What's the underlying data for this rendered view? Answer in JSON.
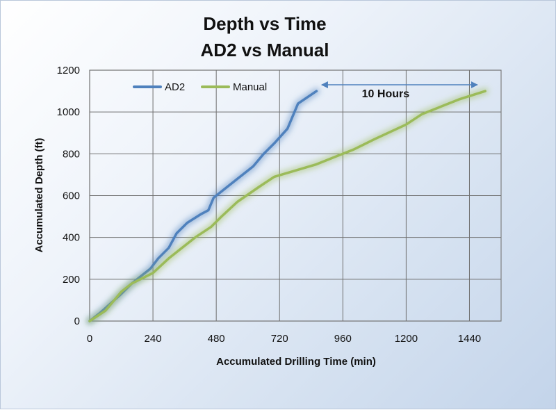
{
  "chart_data": {
    "type": "line",
    "title": "Depth vs Time",
    "subtitle": "AD2 vs Manual",
    "xlabel": "Accumulated Drilling Time (min)",
    "ylabel": "Accumulated Depth (ft)",
    "xlim": [
      0,
      1560
    ],
    "ylim": [
      0,
      1200
    ],
    "xticks": [
      0,
      240,
      480,
      720,
      960,
      1200,
      1440
    ],
    "yticks": [
      0,
      200,
      400,
      600,
      800,
      1000,
      1200
    ],
    "grid": true,
    "legend_position": "top-left",
    "series": [
      {
        "name": "AD2",
        "color": "#4f81bd",
        "x": [
          0,
          40,
          80,
          120,
          160,
          200,
          230,
          260,
          300,
          330,
          370,
          420,
          450,
          470,
          500,
          560,
          620,
          660,
          700,
          750,
          790,
          860
        ],
        "y": [
          0,
          40,
          85,
          130,
          180,
          220,
          250,
          300,
          350,
          420,
          470,
          510,
          530,
          590,
          620,
          680,
          740,
          800,
          850,
          920,
          1040,
          1100
        ]
      },
      {
        "name": "Manual",
        "color": "#9bbb59",
        "x": [
          0,
          60,
          120,
          160,
          240,
          300,
          360,
          400,
          460,
          500,
          560,
          640,
          700,
          780,
          860,
          940,
          1000,
          1080,
          1200,
          1260,
          1320,
          1400,
          1500
        ],
        "y": [
          0,
          50,
          140,
          180,
          230,
          300,
          360,
          400,
          450,
          500,
          570,
          640,
          690,
          720,
          750,
          790,
          820,
          870,
          940,
          990,
          1020,
          1060,
          1100
        ]
      }
    ],
    "annotations": [
      {
        "text": "10 Hours",
        "type": "double-arrow",
        "from": [
          880,
          1130
        ],
        "to": [
          1470,
          1130
        ]
      }
    ]
  }
}
